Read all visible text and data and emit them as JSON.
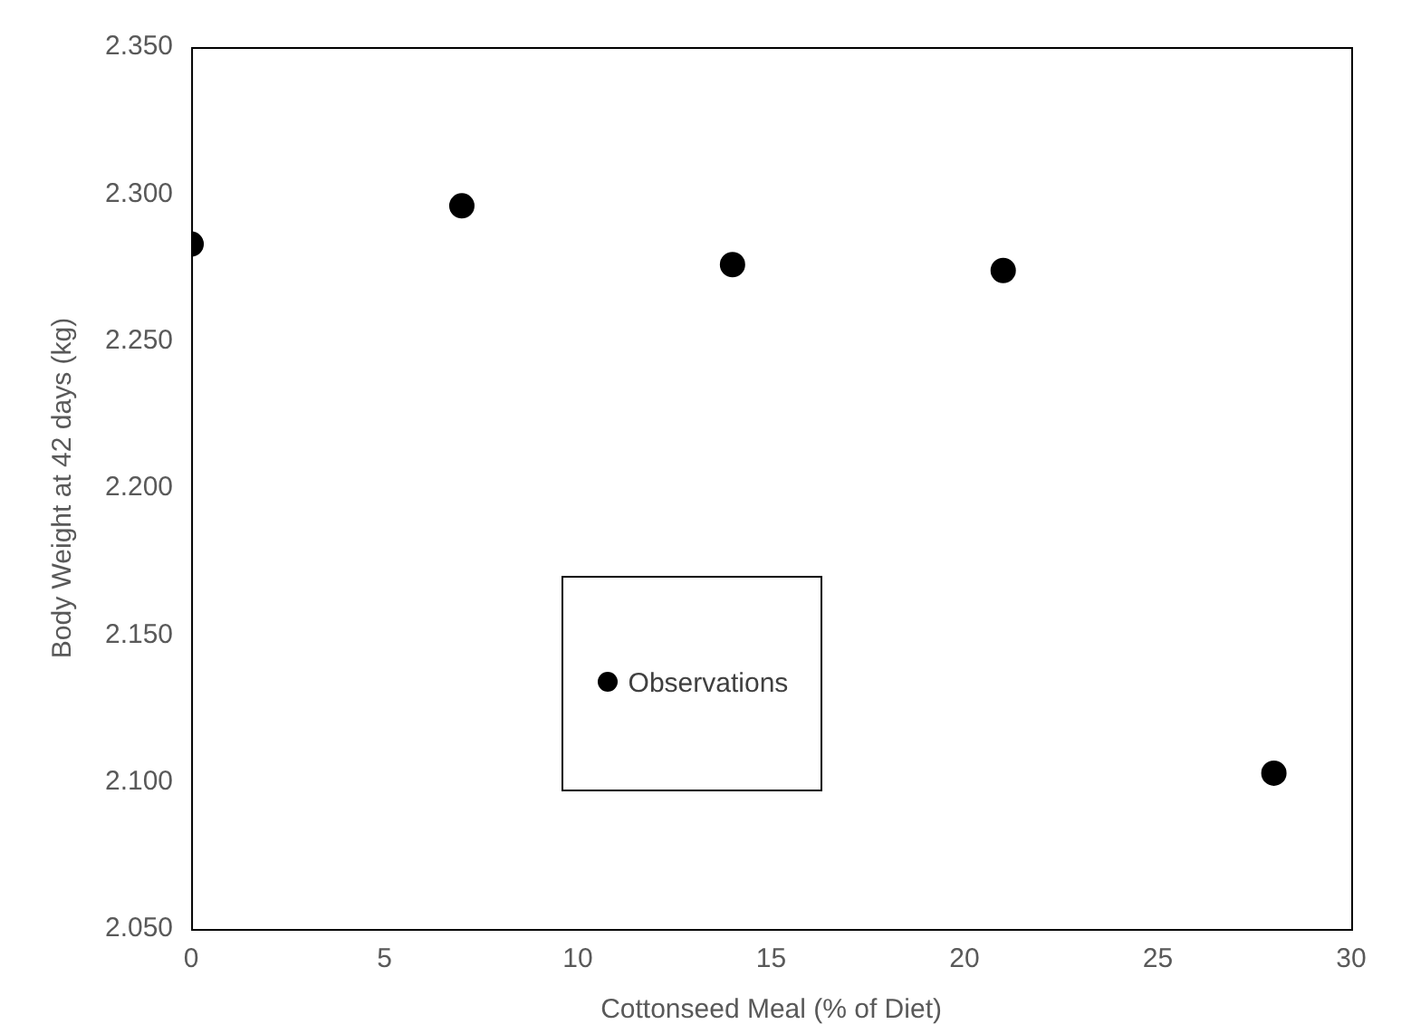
{
  "chart_data": {
    "type": "scatter",
    "xlabel": "Cottonseed Meal (% of Diet)",
    "ylabel": "Body Weight at 42 days (kg)",
    "x": [
      0,
      7,
      14,
      21,
      28
    ],
    "series": [
      {
        "name": "Observations",
        "color": "#000000",
        "values": [
          2.283,
          2.296,
          2.276,
          2.274,
          2.103
        ]
      }
    ],
    "xlim": [
      0,
      30
    ],
    "xticks": [
      0,
      5,
      10,
      15,
      20,
      25,
      30
    ],
    "ylim": [
      2.05,
      2.35
    ],
    "yticks": [
      {
        "value": 2.05,
        "label": "2.050"
      },
      {
        "value": 2.1,
        "label": "2.100"
      },
      {
        "value": 2.15,
        "label": "2.150"
      },
      {
        "value": 2.2,
        "label": "2.200"
      },
      {
        "value": 2.25,
        "label": "2.250"
      },
      {
        "value": 2.3,
        "label": "2.300"
      },
      {
        "value": 2.35,
        "label": "2.350"
      }
    ],
    "grid": false,
    "legend": "bottom",
    "marker": "circle"
  }
}
